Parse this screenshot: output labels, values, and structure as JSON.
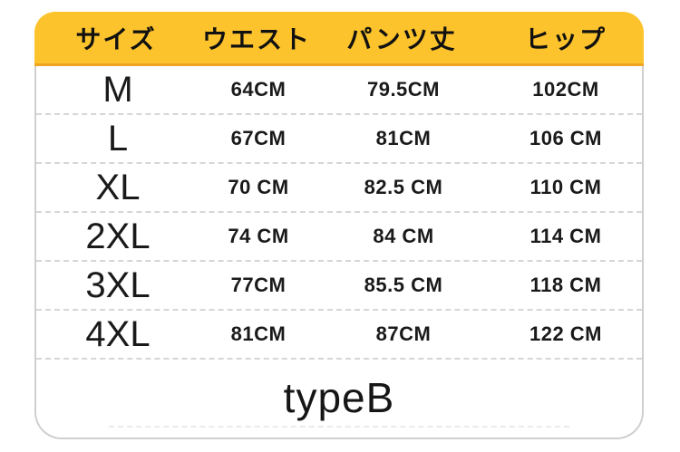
{
  "chart_data": {
    "type": "table",
    "title": "typeB",
    "columns": [
      "サイズ",
      "ウエスト",
      "パンツ丈",
      "ヒップ"
    ],
    "rows": [
      [
        "M",
        "64CM",
        "79.5CM",
        "102CM"
      ],
      [
        "L",
        "67CM",
        "81CM",
        "106 CM"
      ],
      [
        "XL",
        "70 CM",
        "82.5 CM",
        "110 CM"
      ],
      [
        "2XL",
        "74 CM",
        "84 CM",
        "114 CM"
      ],
      [
        "3XL",
        "77CM",
        "85.5 CM",
        "118 CM"
      ],
      [
        "4XL",
        "81CM",
        "87CM",
        "122 CM"
      ]
    ],
    "footer_label": "typeB"
  },
  "colors": {
    "header_bg": "#FCC32C",
    "header_edge": "#EFA423",
    "header_text": "#111111",
    "body_text": "#1a1a1a",
    "card_border": "#cfcfcf",
    "separator": "#d6d6d6",
    "card_bg": "#ffffff",
    "page_bg": "#ffffff"
  }
}
